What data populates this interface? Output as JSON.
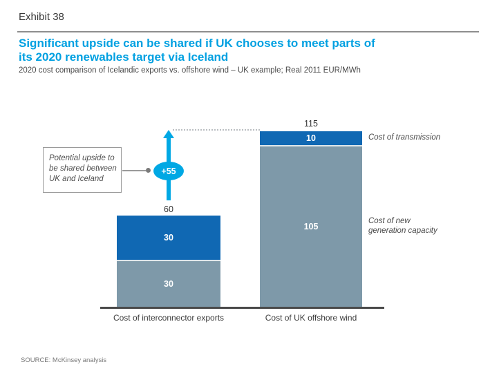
{
  "exhibit": {
    "label": "Exhibit 38"
  },
  "header": {
    "title_line1": "Significant upside can be shared if UK chooses to meet parts of",
    "title_line2": "its 2020 renewables target via Iceland",
    "subtitle": "2020 cost comparison of Icelandic exports vs. offshore wind – UK example; Real 2011 EUR/MWh"
  },
  "chart_data": {
    "type": "bar",
    "stacked": true,
    "unit": "Real 2011 EUR/MWh",
    "categories": [
      "Cost of interconnector exports",
      "Cost of UK offshore wind"
    ],
    "series": [
      {
        "name": "Cost of new generation capacity",
        "color": "#7E99A9",
        "values": [
          30,
          105
        ]
      },
      {
        "name": "Cost of transmission",
        "color": "#1068B3",
        "values": [
          30,
          10
        ]
      }
    ],
    "totals": [
      60,
      115
    ],
    "ylim": [
      0,
      125
    ],
    "grid": false,
    "legend_position": "right-of-bars",
    "annotation": {
      "delta": "+55",
      "from_total": 60,
      "to_total": 115
    }
  },
  "side_labels": {
    "transmission": "Cost of transmission",
    "generation": [
      "Cost of new",
      "generation capacity"
    ]
  },
  "callout": {
    "lines": [
      "Potential upside to",
      "be shared between",
      "UK and Iceland"
    ]
  },
  "footer": {
    "source": "SOURCE: McKinsey analysis"
  },
  "colors": {
    "title_accent": "#00A0E1",
    "bar_blue": "#1068B3",
    "bar_gray_blue": "#7E99A9",
    "arrow_cyan": "#00A8E4",
    "baseline": "#4A4A4A"
  }
}
